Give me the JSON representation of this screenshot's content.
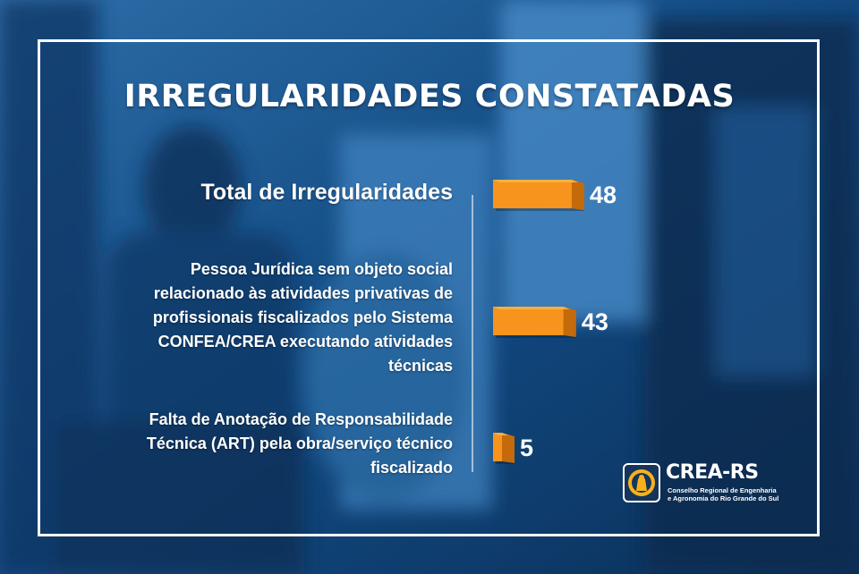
{
  "title": "IRREGULARIDADES CONSTATADAS",
  "colors": {
    "bar_front": "#f7941d",
    "bar_top": "#fbb040",
    "bar_side": "#c46a0a",
    "background": "#0d3f73",
    "text": "#ffffff"
  },
  "chart_data": {
    "type": "bar",
    "orientation": "horizontal",
    "categories": [
      "Total de Irregularidades",
      "Pessoa Jurídica sem objeto social relacionado às atividades privativas de profissionais fiscalizados pelo Sistema CONFEA/CREA executando atividades técnicas",
      "Falta de Anotação de Responsabilidade Técnica (ART) pela obra/serviço técnico fiscalizado"
    ],
    "category_lines": [
      [
        "Total de Irregularidades"
      ],
      [
        "Pessoa Jurídica sem objeto social",
        "relacionado às atividades privativas de",
        "profissionais fiscalizados pelo Sistema",
        "CONFEA/CREA executando atividades",
        "técnicas"
      ],
      [
        "Falta de Anotação de Responsabilidade",
        "Técnica (ART) pela obra/serviço técnico",
        "fiscalizado"
      ]
    ],
    "values": [
      48,
      43,
      5
    ],
    "value_labels": [
      "48",
      "43",
      "5"
    ],
    "title": "IRREGULARIDADES CONSTATADAS",
    "xlabel": "",
    "ylabel": "",
    "xlim": [
      0,
      48
    ],
    "grid": false,
    "legend": "none"
  },
  "logo": {
    "name": "CREA-RS",
    "subtitle_lines": [
      "Conselho Regional de Engenharia",
      "e Agronomia do Rio Grande do Sul"
    ]
  }
}
